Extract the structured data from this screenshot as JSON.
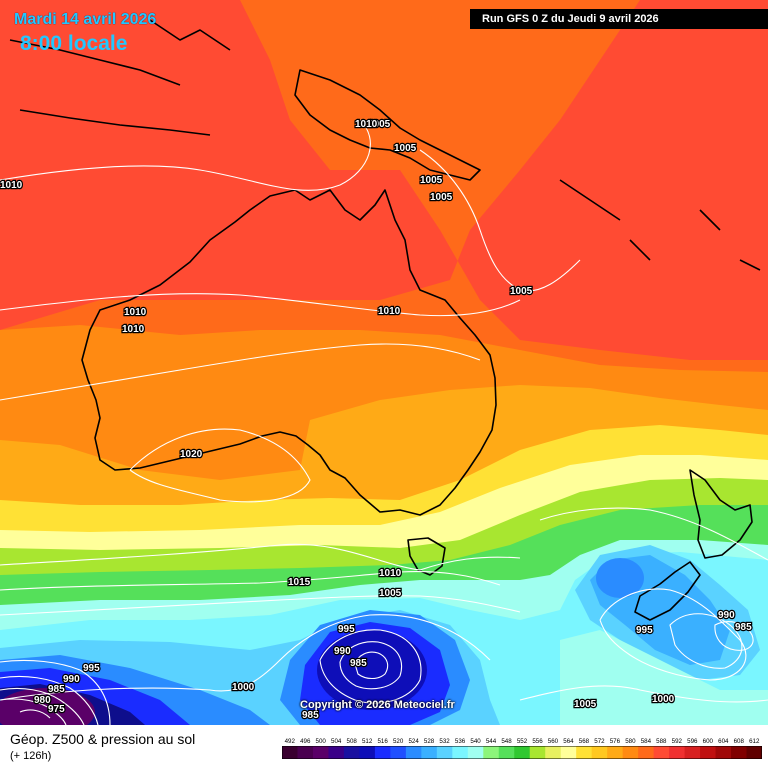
{
  "header": {
    "date": "Mardi 14 avril 2026",
    "time": "8:00 locale",
    "run": "Run GFS 0 Z du Jeudi 9 avril 2026"
  },
  "copyright": "Copyright © 2026 Meteociel.fr",
  "footer": {
    "title": "Géop. Z500 & pression au sol",
    "subtitle": "(+ 126h)"
  },
  "colors": {
    "deep_red": "#ff4b33",
    "orange_red": "#ff6a1a",
    "orange": "#ff8a12",
    "amber": "#ffaa16",
    "yellow": "#ffe135",
    "pale_yellow": "#ffff9a",
    "green": "#55e05a",
    "light_green": "#8cf57a",
    "cyan": "#7af6ff",
    "light_blue": "#5ad2ff",
    "blue": "#2a8cff",
    "deep_blue": "#1a2cff",
    "navy": "#0e0e8c",
    "purple": "#5a0068",
    "isobar": "#ffffff",
    "coast": "#000000"
  },
  "isobar_labels": [
    {
      "text": "1010"
    },
    {
      "text": "1005"
    },
    {
      "text": "1005"
    },
    {
      "text": "1005"
    },
    {
      "text": "1005"
    },
    {
      "text": "1005"
    },
    {
      "text": "1010"
    },
    {
      "text": "1010"
    },
    {
      "text": "1010"
    },
    {
      "text": "1010"
    },
    {
      "text": "1020"
    },
    {
      "text": "1015"
    },
    {
      "text": "1010"
    },
    {
      "text": "1005"
    },
    {
      "text": "995"
    },
    {
      "text": "990"
    },
    {
      "text": "985"
    },
    {
      "text": "995"
    },
    {
      "text": "990"
    },
    {
      "text": "985"
    },
    {
      "text": "980"
    },
    {
      "text": "975"
    },
    {
      "text": "1000"
    },
    {
      "text": "985"
    },
    {
      "text": "1005"
    },
    {
      "text": "995"
    },
    {
      "text": "990"
    },
    {
      "text": "985"
    },
    {
      "text": "1000"
    }
  ],
  "legend": {
    "values": [
      "492",
      "496",
      "500",
      "504",
      "508",
      "512",
      "516",
      "520",
      "524",
      "528",
      "532",
      "536",
      "540",
      "544",
      "548",
      "552",
      "556",
      "560",
      "564",
      "568",
      "572",
      "576",
      "580",
      "584",
      "588",
      "592",
      "596",
      "600",
      "604",
      "608",
      "612"
    ],
    "colors": [
      "#3a0030",
      "#4a0050",
      "#5a0068",
      "#3a0088",
      "#1a10a0",
      "#0e0eb8",
      "#1a2cff",
      "#2050ff",
      "#2a8cff",
      "#3ab0ff",
      "#5ad2ff",
      "#7af6ff",
      "#a0fff0",
      "#8cf57a",
      "#55e05a",
      "#30c830",
      "#a8e630",
      "#e8f060",
      "#ffff9a",
      "#ffe135",
      "#ffc820",
      "#ffaa16",
      "#ff8a12",
      "#ff6a1a",
      "#ff4b33",
      "#f03030",
      "#d82020",
      "#c01010",
      "#a00808",
      "#800000",
      "#600000"
    ]
  }
}
